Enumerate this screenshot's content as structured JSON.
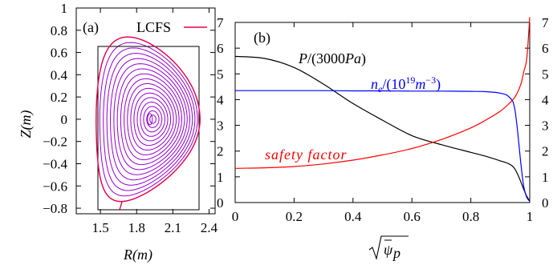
{
  "panel_a": {
    "label": "(a)",
    "legend": "LCFS",
    "xlabel": "R(m)",
    "ylabel": "Z(m)",
    "x_ticks": [
      "1.5",
      "1.8",
      "2.1",
      "2.4"
    ],
    "y_ticks": [
      "1",
      "0.8",
      "0.6",
      "0.4",
      "0.2",
      "0",
      "−0.2",
      "−0.4",
      "−0.6",
      "−0.8"
    ],
    "colors": {
      "flux_surfaces": "#9400d3",
      "lcfs": "#e8004a",
      "box": "#000000"
    }
  },
  "panel_b": {
    "label": "(b)",
    "xlabel": "√ψ̄p",
    "x_ticks": [
      "0",
      "0.2",
      "0.4",
      "0.6",
      "0.8",
      "1"
    ],
    "y_ticks": [
      "0",
      "1",
      "2",
      "3",
      "4",
      "5",
      "6",
      "7"
    ],
    "right_ticks": [
      "7",
      "6",
      "5",
      "4",
      "3",
      "2",
      "1",
      "0"
    ],
    "annotations": {
      "pressure": "P/(3000Pa)",
      "density": "n_e/(10^19 m^-3)",
      "safety": "safety factor"
    },
    "colors": {
      "pressure": "#000000",
      "density": "#0000ff",
      "safety": "#ff0000"
    }
  },
  "chart_data": [
    {
      "type": "line",
      "title": "(a)",
      "xlabel": "R(m)",
      "ylabel": "Z(m)",
      "xlim": [
        1.3,
        2.45
      ],
      "ylim": [
        -0.85,
        1.0
      ],
      "series": [
        {
          "name": "LCFS",
          "description_points": [
            [
              1.66,
              -0.8
            ],
            [
              1.5,
              -0.4
            ],
            [
              1.47,
              0.0
            ],
            [
              1.52,
              0.4
            ],
            [
              1.74,
              0.67
            ],
            [
              2.05,
              0.5
            ],
            [
              2.33,
              0.0
            ],
            [
              2.1,
              -0.5
            ],
            [
              1.66,
              -0.8
            ]
          ]
        }
      ],
      "flux_surface_count": 17,
      "magnetic_axis": [
        1.91,
        0.0
      ],
      "box": {
        "r": [
          1.43,
          2.33
        ],
        "z": [
          -0.79,
          0.68
        ]
      }
    },
    {
      "type": "line",
      "title": "(b)",
      "xlabel": "√ψ̄p",
      "ylabel": "",
      "xlim": [
        0,
        1
      ],
      "ylim": [
        0,
        7
      ],
      "x": [
        0,
        0.1,
        0.2,
        0.3,
        0.4,
        0.5,
        0.6,
        0.7,
        0.8,
        0.85,
        0.9,
        0.93,
        0.95,
        0.97,
        0.98,
        0.99,
        1.0
      ],
      "series": [
        {
          "name": "P/(3000Pa)",
          "values": [
            5.68,
            5.6,
            5.25,
            4.6,
            3.85,
            3.2,
            2.6,
            2.25,
            1.95,
            1.8,
            1.62,
            1.5,
            1.3,
            0.8,
            0.5,
            0.25,
            0.05
          ]
        },
        {
          "name": "n_e/(10^19 m^-3)",
          "values": [
            4.35,
            4.35,
            4.35,
            4.35,
            4.34,
            4.34,
            4.33,
            4.33,
            4.32,
            4.31,
            4.25,
            4.1,
            3.6,
            1.5,
            0.6,
            0.2,
            0.05
          ]
        },
        {
          "name": "safety factor",
          "values": [
            1.33,
            1.35,
            1.4,
            1.5,
            1.65,
            1.85,
            2.1,
            2.45,
            2.9,
            3.2,
            3.55,
            3.85,
            4.1,
            4.6,
            5.1,
            5.6,
            7.2
          ]
        }
      ]
    }
  ]
}
